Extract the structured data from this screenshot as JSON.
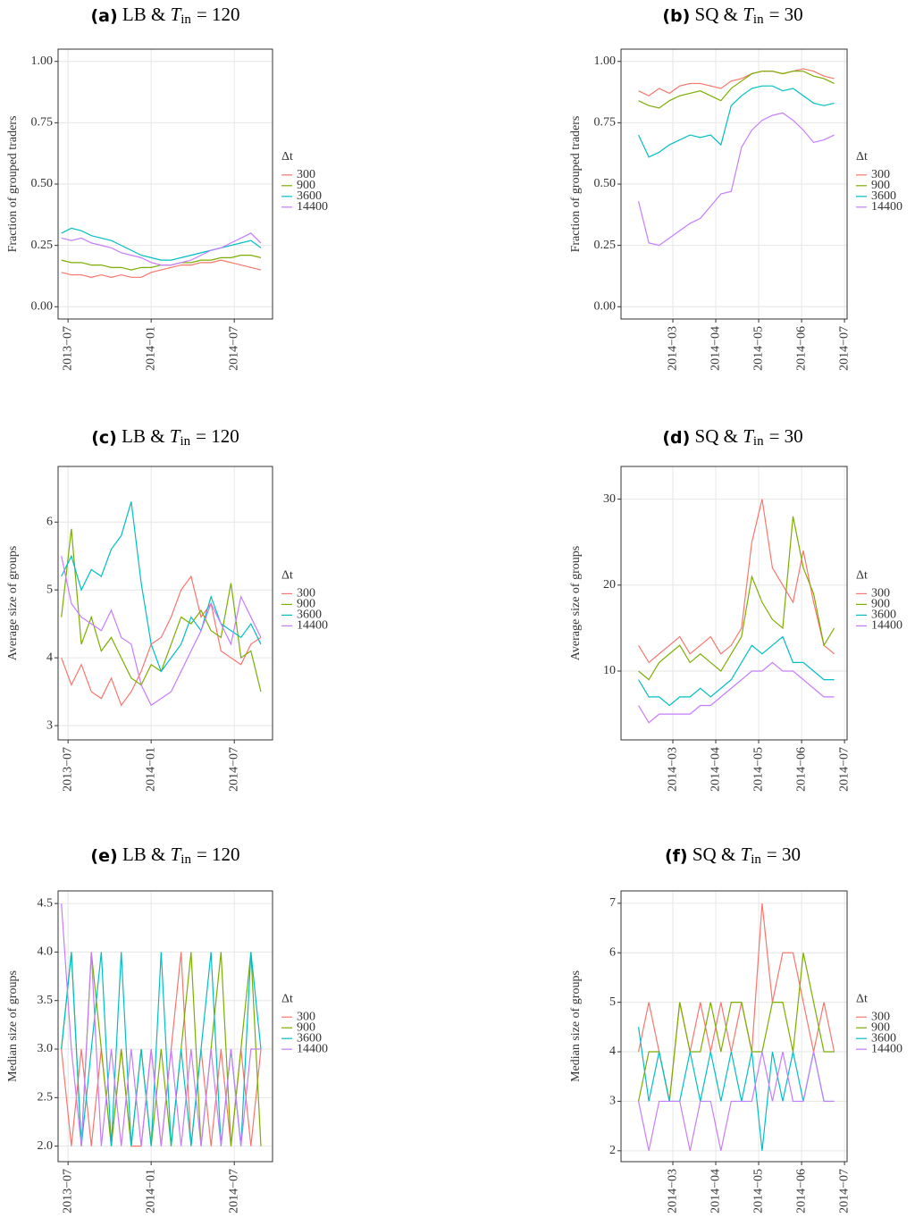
{
  "chart_data": [
    {
      "type": "line",
      "panel": "(a)",
      "title": "LB &",
      "symbol": "T",
      "subscript": "in",
      "equals": "= 120",
      "y_label": "Fraction of grouped traders",
      "legend_title": "Δt",
      "grid": true,
      "x": [
        2013.46,
        2013.52,
        2013.58,
        2013.64,
        2013.7,
        2013.76,
        2013.82,
        2013.88,
        2013.94,
        2014.0,
        2014.06,
        2014.12,
        2014.18,
        2014.24,
        2014.3,
        2014.36,
        2014.42,
        2014.48,
        2014.54,
        2014.6,
        2014.66
      ],
      "xlim": [
        2013.44,
        2014.73
      ],
      "xticks": [
        {
          "value": 2013.5,
          "label": "2013−07"
        },
        {
          "value": 2014.0,
          "label": "2014−01"
        },
        {
          "value": 2014.5,
          "label": "2014−07"
        }
      ],
      "ylim": [
        -0.05,
        1.05
      ],
      "yticks": [
        {
          "value": 0,
          "label": "0.00"
        },
        {
          "value": 0.25,
          "label": "0.25"
        },
        {
          "value": 0.5,
          "label": "0.50"
        },
        {
          "value": 0.75,
          "label": "0.75"
        },
        {
          "value": 1,
          "label": "1.00"
        }
      ],
      "series": [
        {
          "name": "300",
          "color": "#F8766D",
          "values": [
            0.14,
            0.13,
            0.13,
            0.12,
            0.13,
            0.12,
            0.13,
            0.12,
            0.12,
            0.14,
            0.15,
            0.16,
            0.17,
            0.17,
            0.18,
            0.18,
            0.19,
            0.18,
            0.17,
            0.16,
            0.15
          ]
        },
        {
          "name": "900",
          "color": "#7CAE00",
          "values": [
            0.19,
            0.18,
            0.18,
            0.17,
            0.17,
            0.16,
            0.16,
            0.15,
            0.16,
            0.16,
            0.17,
            0.17,
            0.18,
            0.18,
            0.19,
            0.19,
            0.2,
            0.2,
            0.21,
            0.21,
            0.2
          ]
        },
        {
          "name": "3600",
          "color": "#00BFC4",
          "values": [
            0.3,
            0.32,
            0.31,
            0.29,
            0.28,
            0.27,
            0.25,
            0.23,
            0.21,
            0.2,
            0.19,
            0.19,
            0.2,
            0.21,
            0.22,
            0.23,
            0.24,
            0.25,
            0.26,
            0.27,
            0.24
          ]
        },
        {
          "name": "14400",
          "color": "#C77CFF",
          "values": [
            0.28,
            0.27,
            0.28,
            0.26,
            0.25,
            0.24,
            0.22,
            0.21,
            0.2,
            0.18,
            0.17,
            0.17,
            0.18,
            0.19,
            0.21,
            0.23,
            0.24,
            0.26,
            0.28,
            0.3,
            0.26
          ]
        }
      ]
    },
    {
      "type": "line",
      "panel": "(b)",
      "title": "SQ &",
      "symbol": "T",
      "subscript": "in",
      "equals": "= 30",
      "y_label": "Fraction of grouped traders",
      "legend_title": "Δt",
      "grid": true,
      "x": [
        2014.1,
        2014.12,
        2014.14,
        2014.16,
        2014.18,
        2014.2,
        2014.22,
        2014.24,
        2014.26,
        2014.28,
        2014.3,
        2014.32,
        2014.34,
        2014.36,
        2014.38,
        2014.4,
        2014.42,
        2014.44,
        2014.46,
        2014.48
      ],
      "xlim": [
        2014.066,
        2014.505
      ],
      "xticks": [
        {
          "value": 2014.1667,
          "label": "2014−03"
        },
        {
          "value": 2014.25,
          "label": "2014−04"
        },
        {
          "value": 2014.3333,
          "label": "2014−05"
        },
        {
          "value": 2014.4167,
          "label": "2014−06"
        },
        {
          "value": 2014.5,
          "label": "2014−07"
        }
      ],
      "ylim": [
        -0.05,
        1.05
      ],
      "yticks": [
        {
          "value": 0,
          "label": "0.00"
        },
        {
          "value": 0.25,
          "label": "0.25"
        },
        {
          "value": 0.5,
          "label": "0.50"
        },
        {
          "value": 0.75,
          "label": "0.75"
        },
        {
          "value": 1,
          "label": "1.00"
        }
      ],
      "series": [
        {
          "name": "300",
          "color": "#F8766D",
          "values": [
            0.88,
            0.86,
            0.89,
            0.87,
            0.9,
            0.91,
            0.91,
            0.9,
            0.89,
            0.92,
            0.93,
            0.95,
            0.96,
            0.96,
            0.95,
            0.96,
            0.97,
            0.96,
            0.94,
            0.93
          ]
        },
        {
          "name": "900",
          "color": "#7CAE00",
          "values": [
            0.84,
            0.82,
            0.81,
            0.84,
            0.86,
            0.87,
            0.88,
            0.86,
            0.84,
            0.89,
            0.92,
            0.95,
            0.96,
            0.96,
            0.95,
            0.96,
            0.96,
            0.94,
            0.93,
            0.91
          ]
        },
        {
          "name": "3600",
          "color": "#00BFC4",
          "values": [
            0.7,
            0.61,
            0.63,
            0.66,
            0.68,
            0.7,
            0.69,
            0.7,
            0.66,
            0.82,
            0.86,
            0.89,
            0.9,
            0.9,
            0.88,
            0.89,
            0.86,
            0.83,
            0.82,
            0.83
          ]
        },
        {
          "name": "14400",
          "color": "#C77CFF",
          "values": [
            0.43,
            0.26,
            0.25,
            0.28,
            0.31,
            0.34,
            0.36,
            0.41,
            0.46,
            0.47,
            0.65,
            0.72,
            0.76,
            0.78,
            0.79,
            0.76,
            0.72,
            0.67,
            0.68,
            0.7
          ]
        }
      ]
    },
    {
      "type": "line",
      "panel": "(c)",
      "title": "LB &",
      "symbol": "T",
      "subscript": "in",
      "equals": "= 120",
      "y_label": "Average size of groups",
      "legend_title": "Δt",
      "grid": true,
      "x": [
        2013.46,
        2013.52,
        2013.58,
        2013.64,
        2013.7,
        2013.76,
        2013.82,
        2013.88,
        2013.94,
        2014.0,
        2014.06,
        2014.12,
        2014.18,
        2014.24,
        2014.3,
        2014.36,
        2014.42,
        2014.48,
        2014.54,
        2014.6,
        2014.66
      ],
      "xlim": [
        2013.44,
        2014.73
      ],
      "xticks": [
        {
          "value": 2013.5,
          "label": "2013−07"
        },
        {
          "value": 2014.0,
          "label": "2014−01"
        },
        {
          "value": 2014.5,
          "label": "2014−07"
        }
      ],
      "ylim": [
        2.79,
        6.82
      ],
      "yticks": [
        3,
        4,
        5,
        6
      ],
      "series": [
        {
          "name": "300",
          "color": "#F8766D",
          "values": [
            4.0,
            3.6,
            3.9,
            3.5,
            3.4,
            3.7,
            3.3,
            3.5,
            3.8,
            4.2,
            4.3,
            4.6,
            5.0,
            5.2,
            4.6,
            4.8,
            4.1,
            4.0,
            3.9,
            4.2,
            4.3
          ]
        },
        {
          "name": "900",
          "color": "#7CAE00",
          "values": [
            4.6,
            5.9,
            4.2,
            4.6,
            4.1,
            4.3,
            4.0,
            3.7,
            3.6,
            3.9,
            3.8,
            4.2,
            4.6,
            4.5,
            4.7,
            4.4,
            4.3,
            5.1,
            4.0,
            4.1,
            3.5
          ]
        },
        {
          "name": "3600",
          "color": "#00BFC4",
          "values": [
            5.2,
            5.5,
            5.0,
            5.3,
            5.2,
            5.6,
            5.8,
            6.3,
            5.1,
            4.2,
            3.8,
            4.0,
            4.2,
            4.6,
            4.4,
            4.9,
            4.5,
            4.4,
            4.3,
            4.5,
            4.2
          ]
        },
        {
          "name": "14400",
          "color": "#C77CFF",
          "values": [
            5.5,
            4.8,
            4.6,
            4.5,
            4.4,
            4.7,
            4.3,
            4.2,
            3.6,
            3.3,
            3.4,
            3.5,
            3.8,
            4.1,
            4.4,
            4.8,
            4.5,
            4.2,
            4.9,
            4.6,
            4.3
          ]
        }
      ]
    },
    {
      "type": "line",
      "panel": "(d)",
      "title": "SQ &",
      "symbol": "T",
      "subscript": "in",
      "equals": "= 30",
      "y_label": "Average size of groups",
      "legend_title": "Δt",
      "grid": true,
      "x": [
        2014.1,
        2014.12,
        2014.14,
        2014.16,
        2014.18,
        2014.2,
        2014.22,
        2014.24,
        2014.26,
        2014.28,
        2014.3,
        2014.32,
        2014.34,
        2014.36,
        2014.38,
        2014.4,
        2014.42,
        2014.44,
        2014.46,
        2014.48
      ],
      "xlim": [
        2014.066,
        2014.505
      ],
      "xticks": [
        {
          "value": 2014.1667,
          "label": "2014−03"
        },
        {
          "value": 2014.25,
          "label": "2014−04"
        },
        {
          "value": 2014.3333,
          "label": "2014−05"
        },
        {
          "value": 2014.4167,
          "label": "2014−06"
        },
        {
          "value": 2014.5,
          "label": "2014−07"
        }
      ],
      "ylim": [
        2,
        33.8
      ],
      "yticks": [
        10,
        20,
        30
      ],
      "series": [
        {
          "name": "300",
          "color": "#F8766D",
          "values": [
            13,
            11,
            12,
            13,
            14,
            12,
            13,
            14,
            12,
            13,
            15,
            25,
            30,
            22,
            20,
            18,
            24,
            18,
            13,
            12
          ]
        },
        {
          "name": "900",
          "color": "#7CAE00",
          "values": [
            10,
            9,
            11,
            12,
            13,
            11,
            12,
            11,
            10,
            12,
            14,
            21,
            18,
            16,
            15,
            28,
            22,
            19,
            13,
            15
          ]
        },
        {
          "name": "3600",
          "color": "#00BFC4",
          "values": [
            9,
            7,
            7,
            6,
            7,
            7,
            8,
            7,
            8,
            9,
            11,
            13,
            12,
            13,
            14,
            11,
            11,
            10,
            9,
            9
          ]
        },
        {
          "name": "14400",
          "color": "#C77CFF",
          "values": [
            6,
            4,
            5,
            5,
            5,
            5,
            6,
            6,
            7,
            8,
            9,
            10,
            10,
            11,
            10,
            10,
            9,
            8,
            7,
            7
          ]
        }
      ]
    },
    {
      "type": "line",
      "panel": "(e)",
      "title": "LB &",
      "symbol": "T",
      "subscript": "in",
      "equals": "= 120",
      "y_label": "Median size of groups",
      "legend_title": "Δt",
      "grid": true,
      "x": [
        2013.46,
        2013.52,
        2013.58,
        2013.64,
        2013.7,
        2013.76,
        2013.82,
        2013.88,
        2013.94,
        2014.0,
        2014.06,
        2014.12,
        2014.18,
        2014.24,
        2014.3,
        2014.36,
        2014.42,
        2014.48,
        2014.54,
        2014.6,
        2014.66
      ],
      "xlim": [
        2013.44,
        2014.73
      ],
      "xticks": [
        {
          "value": 2013.5,
          "label": "2013−07"
        },
        {
          "value": 2014.0,
          "label": "2014−01"
        },
        {
          "value": 2014.5,
          "label": "2014−07"
        }
      ],
      "ylim": [
        1.84,
        4.63
      ],
      "yticks": [
        {
          "value": 2,
          "label": "2.0"
        },
        2.5,
        {
          "value": 3,
          "label": "3.0"
        },
        3.5,
        {
          "value": 4,
          "label": "4.0"
        },
        4.5
      ],
      "series": [
        {
          "name": "300",
          "color": "#F8766D",
          "values": [
            3,
            2,
            3,
            2,
            3,
            2,
            3,
            2,
            2,
            3,
            2,
            3,
            4,
            2,
            3,
            2,
            3,
            2,
            3,
            2,
            3
          ]
        },
        {
          "name": "900",
          "color": "#7CAE00",
          "values": [
            3,
            4,
            2,
            4,
            3,
            2,
            3,
            2,
            3,
            2,
            3,
            2,
            3,
            4,
            2,
            3,
            4,
            2,
            3,
            4,
            2
          ]
        },
        {
          "name": "3600",
          "color": "#00BFC4",
          "values": [
            3,
            4,
            2,
            3,
            4,
            2,
            4,
            2,
            3,
            2,
            4,
            2,
            3,
            2,
            3,
            4,
            2,
            3,
            2,
            4,
            3
          ]
        },
        {
          "name": "14400",
          "color": "#C77CFF",
          "values": [
            4.5,
            3,
            2,
            4,
            2,
            3,
            2,
            3,
            2,
            3,
            2,
            3,
            2,
            3,
            2,
            3,
            2,
            3,
            2,
            3,
            3
          ]
        }
      ]
    },
    {
      "type": "line",
      "panel": "(f)",
      "title": "SQ &",
      "symbol": "T",
      "subscript": "in",
      "equals": "= 30",
      "y_label": "Median size of groups",
      "legend_title": "Δt",
      "grid": true,
      "x": [
        2014.1,
        2014.12,
        2014.14,
        2014.16,
        2014.18,
        2014.2,
        2014.22,
        2014.24,
        2014.26,
        2014.28,
        2014.3,
        2014.32,
        2014.34,
        2014.36,
        2014.38,
        2014.4,
        2014.42,
        2014.44,
        2014.46,
        2014.48
      ],
      "xlim": [
        2014.066,
        2014.505
      ],
      "xticks": [
        {
          "value": 2014.1667,
          "label": "2014−03"
        },
        {
          "value": 2014.25,
          "label": "2014−04"
        },
        {
          "value": 2014.3333,
          "label": "2014−05"
        },
        {
          "value": 2014.4167,
          "label": "2014−06"
        },
        {
          "value": 2014.5,
          "label": "2014−07"
        }
      ],
      "ylim": [
        1.78,
        7.25
      ],
      "yticks": [
        2,
        3,
        4,
        5,
        6,
        7
      ],
      "series": [
        {
          "name": "300",
          "color": "#F8766D",
          "values": [
            4,
            5,
            4,
            3,
            5,
            4,
            5,
            4,
            5,
            4,
            5,
            4,
            7,
            5,
            6,
            6,
            5,
            4,
            5,
            4
          ]
        },
        {
          "name": "900",
          "color": "#7CAE00",
          "values": [
            3,
            4,
            4,
            3,
            5,
            4,
            4,
            5,
            4,
            5,
            5,
            4,
            4,
            5,
            5,
            4,
            6,
            5,
            4,
            4
          ]
        },
        {
          "name": "3600",
          "color": "#00BFC4",
          "values": [
            4.5,
            3,
            4,
            3,
            3,
            4,
            3,
            4,
            3,
            4,
            3,
            4,
            2,
            4,
            3,
            4,
            3,
            4,
            3,
            3
          ]
        },
        {
          "name": "14400",
          "color": "#C77CFF",
          "values": [
            3,
            2,
            3,
            3,
            3,
            2,
            3,
            3,
            2,
            3,
            3,
            3,
            4,
            3,
            4,
            3,
            3,
            4,
            3,
            3
          ]
        }
      ]
    }
  ]
}
